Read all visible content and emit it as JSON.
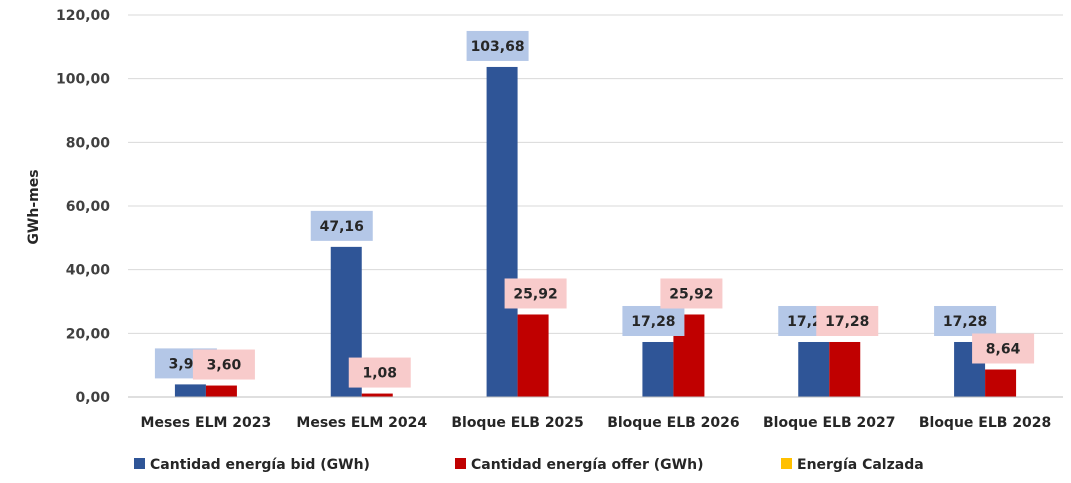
{
  "chart_data": {
    "type": "bar",
    "title": "",
    "xlabel": "",
    "ylabel": "GWh-mes",
    "ylim": [
      0,
      120
    ],
    "ytick_values": [
      0,
      20,
      40,
      60,
      80,
      100,
      120
    ],
    "ytick_labels": [
      "0,00",
      "20,00",
      "40,00",
      "60,00",
      "80,00",
      "100,00",
      "120,00"
    ],
    "grid": true,
    "legend_position": "bottom",
    "categories": [
      "Meses ELM 2023",
      "Meses ELM 2024",
      "Bloque ELB 2025",
      "Bloque ELB 2026",
      "Bloque ELB 2027",
      "Bloque ELB 2028"
    ],
    "series": [
      {
        "name": "Cantidad energía bid (GWh)",
        "color": "#2F5597",
        "label_bg": "#B4C7E7",
        "values": [
          3.96,
          47.16,
          103.68,
          17.28,
          17.28,
          17.28
        ],
        "labels": [
          "3,96",
          "47,16",
          "103,68",
          "17,28",
          "17,28",
          "17,28"
        ]
      },
      {
        "name": "Cantidad energía offer (GWh)",
        "color": "#C00000",
        "label_bg": "#F8CBCB",
        "values": [
          3.6,
          1.08,
          25.92,
          25.92,
          17.28,
          8.64
        ],
        "labels": [
          "3,60",
          "1,08",
          "25,92",
          "25,92",
          "17,28",
          "8,64"
        ]
      },
      {
        "name": "Energía Calzada",
        "color": "#FFC000",
        "values": [
          0,
          0,
          0,
          0,
          0,
          0
        ],
        "labels": []
      }
    ]
  }
}
